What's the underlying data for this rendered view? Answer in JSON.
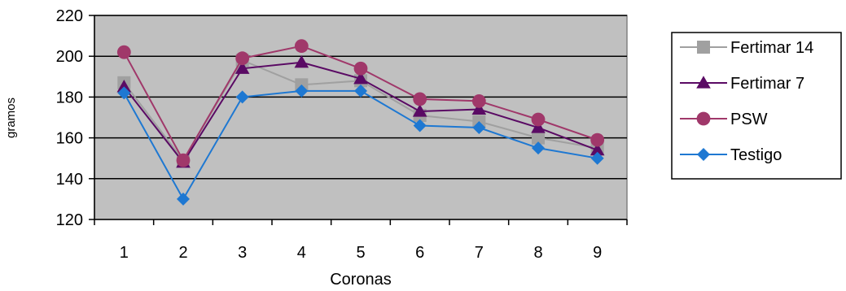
{
  "chart_data": {
    "type": "line",
    "title": "",
    "xlabel": "Coronas",
    "ylabel": "gramos",
    "categories": [
      "1",
      "2",
      "3",
      "4",
      "5",
      "6",
      "7",
      "8",
      "9"
    ],
    "ylim": [
      120,
      220
    ],
    "yticks": [
      120,
      140,
      160,
      180,
      200,
      220
    ],
    "grid": true,
    "plot_background": "#c0c0c0",
    "legend_position": "right",
    "series": [
      {
        "name": "Fertimar 14",
        "color": "#a0a0a0",
        "marker": "square",
        "values": [
          187,
          149,
          198,
          186,
          188,
          171,
          168,
          160,
          155
        ]
      },
      {
        "name": "Fertimar 7",
        "color": "#5a0a64",
        "marker": "triangle",
        "values": [
          185,
          148,
          194,
          197,
          189,
          173,
          174,
          165,
          154
        ]
      },
      {
        "name": "PSW",
        "color": "#a0386a",
        "marker": "circle",
        "values": [
          202,
          149,
          199,
          205,
          194,
          179,
          178,
          169,
          159
        ]
      },
      {
        "name": "Testigo",
        "color": "#1e78d2",
        "marker": "diamond",
        "values": [
          182,
          130,
          180,
          183,
          183,
          166,
          165,
          155,
          150
        ]
      }
    ]
  }
}
